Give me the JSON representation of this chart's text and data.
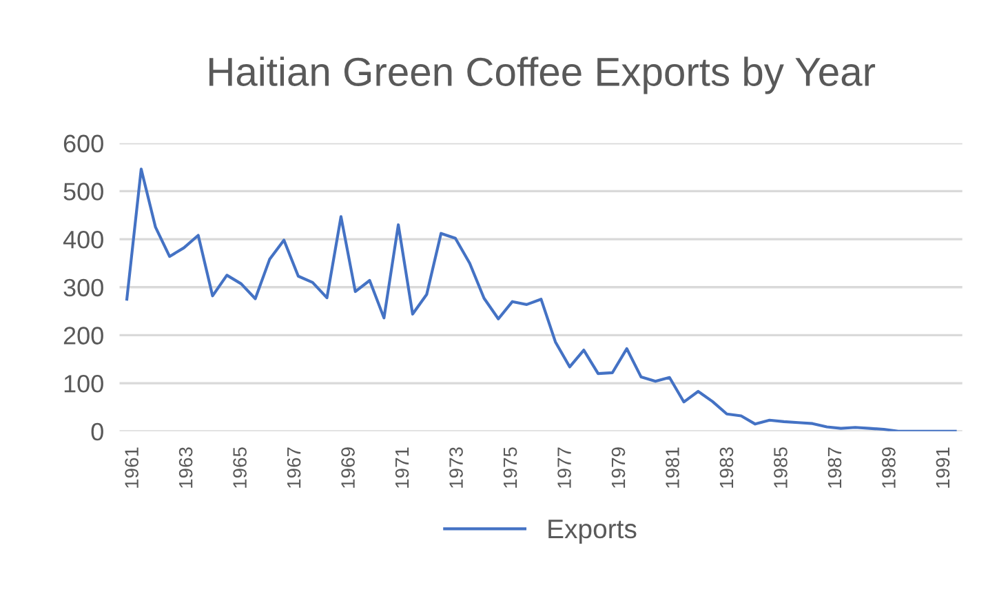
{
  "chart_data": {
    "type": "line",
    "title": "Haitian Green Coffee Exports by Year",
    "x": [
      1960.76,
      1961.29,
      1961.82,
      1962.34,
      1962.87,
      1963.4,
      1963.93,
      1964.46,
      1964.99,
      1965.51,
      1966.04,
      1966.57,
      1967.1,
      1967.63,
      1968.16,
      1968.68,
      1969.21,
      1969.74,
      1970.27,
      1970.8,
      1971.33,
      1971.85,
      1972.38,
      1972.91,
      1973.44,
      1973.97,
      1974.5,
      1975.02,
      1975.55,
      1976.08,
      1976.61,
      1977.14,
      1977.66,
      1978.19,
      1978.72,
      1979.25,
      1979.78,
      1980.31,
      1980.83,
      1981.36,
      1981.89,
      1982.42,
      1982.95,
      1983.48,
      1984.0,
      1984.53,
      1985.06,
      1985.59,
      1986.12,
      1986.65,
      1987.17,
      1987.7,
      1988.23,
      1988.76,
      1989.29,
      1989.82,
      1990.34,
      1990.87,
      1991.4
    ],
    "series": [
      {
        "name": "Exports",
        "color": "#4472c4",
        "values": [
          275,
          546,
          425,
          364,
          382,
          408,
          282,
          325,
          307,
          276,
          358,
          398,
          323,
          310,
          278,
          447,
          291,
          314,
          236,
          430,
          244,
          285,
          412,
          402,
          350,
          277,
          234,
          270,
          264,
          275,
          186,
          134,
          169,
          120,
          122,
          172,
          113,
          104,
          112,
          61,
          83,
          62,
          36,
          32,
          15,
          23,
          20,
          18,
          16,
          9,
          6,
          8,
          6,
          4,
          0,
          0,
          0,
          0,
          0
        ]
      }
    ],
    "xlim": [
      1960.49,
      1991.66
    ],
    "xticks": [
      1961,
      1963,
      1965,
      1967,
      1969,
      1971,
      1973,
      1975,
      1977,
      1979,
      1981,
      1983,
      1985,
      1987,
      1989,
      1991
    ],
    "ylim": [
      0,
      600
    ],
    "yticks": [
      0,
      100,
      200,
      300,
      400,
      500,
      600
    ],
    "grid": "y",
    "legend": "bottom",
    "marker": "none",
    "line_style": "solid"
  }
}
